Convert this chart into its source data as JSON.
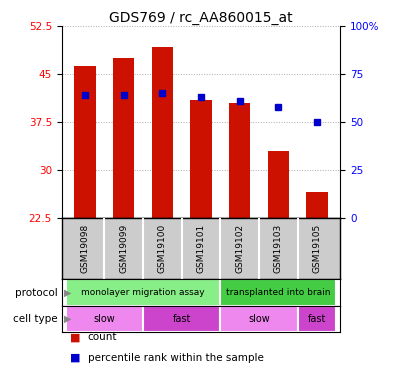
{
  "title": "GDS769 / rc_AA860015_at",
  "samples": [
    "GSM19098",
    "GSM19099",
    "GSM19100",
    "GSM19101",
    "GSM19102",
    "GSM19103",
    "GSM19105"
  ],
  "count_values": [
    46.2,
    47.5,
    49.2,
    41.0,
    40.5,
    33.0,
    26.5
  ],
  "percentile_values": [
    64,
    64,
    65,
    63,
    61,
    58,
    50
  ],
  "ymin": 22.5,
  "ymax": 52.5,
  "yticks": [
    22.5,
    30,
    37.5,
    45,
    52.5
  ],
  "ytick_labels": [
    "22.5",
    "30",
    "37.5",
    "45",
    "52.5"
  ],
  "y2min": 0,
  "y2max": 100,
  "y2ticks": [
    0,
    25,
    50,
    75,
    100
  ],
  "y2tick_labels": [
    "0",
    "25",
    "50",
    "75",
    "100%"
  ],
  "bar_color": "#cc1100",
  "dot_color": "#0000cc",
  "grid_color": "#888888",
  "protocol_groups": [
    {
      "label": "monolayer migration assay",
      "start": 0,
      "end": 3,
      "color": "#88ee88"
    },
    {
      "label": "transplanted into brain",
      "start": 4,
      "end": 6,
      "color": "#44cc44"
    }
  ],
  "cell_type_groups": [
    {
      "label": "slow",
      "start": 0,
      "end": 1,
      "color": "#ee88ee"
    },
    {
      "label": "fast",
      "start": 2,
      "end": 3,
      "color": "#cc44cc"
    },
    {
      "label": "slow",
      "start": 4,
      "end": 5,
      "color": "#ee88ee"
    },
    {
      "label": "fast",
      "start": 6,
      "end": 6,
      "color": "#cc44cc"
    }
  ],
  "legend_items": [
    {
      "label": "count",
      "color": "#cc1100"
    },
    {
      "label": "percentile rank within the sample",
      "color": "#0000cc"
    }
  ],
  "bar_width": 0.55,
  "title_fontsize": 10,
  "tick_fontsize": 7.5,
  "sample_fontsize": 6.5
}
